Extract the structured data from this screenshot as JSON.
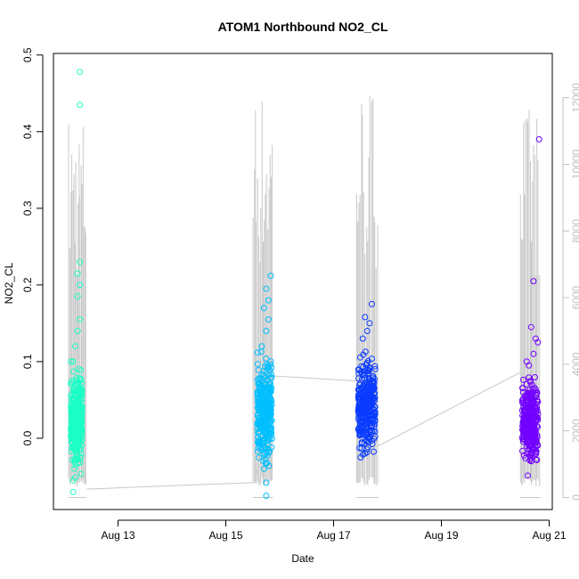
{
  "chart_data": {
    "type": "scatter",
    "title": "ATOM1 Northbound NO2_CL",
    "xlabel": "Date",
    "ylabel": "NO2_CL",
    "x_ticks": [
      "Aug 13",
      "Aug 15",
      "Aug 17",
      "Aug 19",
      "Aug 21"
    ],
    "xlim": [
      "2023-08-12T00:00",
      "2023-08-21T00:00"
    ],
    "ylim": [
      -0.07,
      0.5
    ],
    "y_ticks": [
      0.0,
      0.1,
      0.2,
      0.3,
      0.4,
      0.5
    ],
    "y_tick_labels": [
      "0.0",
      "0.1",
      "0.2",
      "0.3",
      "0.4",
      "0.5"
    ],
    "y2_ticks": [
      0,
      2000,
      4000,
      6000,
      8000,
      10000,
      12000
    ],
    "y2_tick_labels": [
      "0",
      "2000",
      "4000",
      "6000",
      "8000",
      "10000",
      "12000"
    ],
    "y2lim": [
      0,
      12700
    ],
    "grid": false,
    "legend": "none",
    "series": [
      {
        "color": "#1affc6",
        "x_range": [
          "2023-08-12T03:00",
          "2023-08-12T08:00"
        ],
        "y_core": [
          -0.03,
          0.075
        ],
        "outliers": [
          {
            "x": "2023-08-12T07:00",
            "y": 0.478
          },
          {
            "x": "2023-08-12T07:00",
            "y": 0.435
          },
          {
            "x": "2023-08-12T07:00",
            "y": 0.23
          },
          {
            "x": "2023-08-12T06:00",
            "y": 0.215
          },
          {
            "x": "2023-08-12T07:00",
            "y": 0.2
          },
          {
            "x": "2023-08-12T06:00",
            "y": 0.185
          },
          {
            "x": "2023-08-12T07:00",
            "y": 0.155
          },
          {
            "x": "2023-08-12T06:00",
            "y": 0.14
          },
          {
            "x": "2023-08-12T05:00",
            "y": 0.12
          },
          {
            "x": "2023-08-12T04:00",
            "y": 0.1
          },
          {
            "x": "2023-08-12T03:00",
            "y": 0.1
          },
          {
            "x": "2023-08-12T04:00",
            "y": -0.07
          },
          {
            "x": "2023-08-12T04:00",
            "y": -0.055
          }
        ]
      },
      {
        "color": "#00bfff",
        "x_range": [
          "2023-08-15T14:00",
          "2023-08-15T20:30"
        ],
        "y_core": [
          -0.025,
          0.1
        ],
        "outliers": [
          {
            "x": "2023-08-15T20:00",
            "y": 0.212
          },
          {
            "x": "2023-08-15T18:00",
            "y": 0.195
          },
          {
            "x": "2023-08-15T19:00",
            "y": 0.18
          },
          {
            "x": "2023-08-15T17:00",
            "y": 0.17
          },
          {
            "x": "2023-08-15T19:00",
            "y": 0.155
          },
          {
            "x": "2023-08-15T18:00",
            "y": 0.14
          },
          {
            "x": "2023-08-15T16:00",
            "y": 0.12
          },
          {
            "x": "2023-08-15T18:00",
            "y": -0.075
          },
          {
            "x": "2023-08-15T18:00",
            "y": -0.058
          },
          {
            "x": "2023-08-15T17:00",
            "y": -0.04
          }
        ]
      },
      {
        "color": "#0a3bff",
        "x_range": [
          "2023-08-17T11:00",
          "2023-08-17T18:30"
        ],
        "y_core": [
          -0.02,
          0.1
        ],
        "outliers": [
          {
            "x": "2023-08-17T17:00",
            "y": 0.175
          },
          {
            "x": "2023-08-17T14:00",
            "y": 0.158
          },
          {
            "x": "2023-08-17T16:00",
            "y": 0.15
          },
          {
            "x": "2023-08-17T15:00",
            "y": 0.14
          },
          {
            "x": "2023-08-17T13:00",
            "y": 0.13
          },
          {
            "x": "2023-08-17T12:00",
            "y": -0.025
          },
          {
            "x": "2023-08-17T14:00",
            "y": -0.02
          }
        ]
      },
      {
        "color": "#7200ff",
        "x_range": [
          "2023-08-20T12:00",
          "2023-08-20T19:00"
        ],
        "y_core": [
          -0.03,
          0.075
        ],
        "outliers": [
          {
            "x": "2023-08-20T19:30",
            "y": 0.39
          },
          {
            "x": "2023-08-20T17:00",
            "y": 0.205
          },
          {
            "x": "2023-08-20T16:00",
            "y": 0.145
          },
          {
            "x": "2023-08-20T18:00",
            "y": 0.13
          },
          {
            "x": "2023-08-20T19:00",
            "y": 0.125
          },
          {
            "x": "2023-08-20T17:00",
            "y": 0.11
          },
          {
            "x": "2023-08-20T14:00",
            "y": 0.1
          },
          {
            "x": "2023-08-20T15:00",
            "y": 0.095
          },
          {
            "x": "2023-08-20T16:00",
            "y": -0.03
          }
        ]
      }
    ],
    "grey_series": {
      "color": "#c8c8c8",
      "axis": "right",
      "clusters": [
        {
          "x_range": [
            "2023-08-12T02:00",
            "2023-08-12T10:00"
          ],
          "max": 11600
        },
        {
          "x_range": [
            "2023-08-15T12:00",
            "2023-08-15T21:00"
          ],
          "max": 12300
        },
        {
          "x_range": [
            "2023-08-17T10:00",
            "2023-08-17T20:00"
          ],
          "max": 12500
        },
        {
          "x_range": [
            "2023-08-20T11:00",
            "2023-08-20T20:00"
          ],
          "max": 11800
        }
      ],
      "connectors": [
        {
          "x": "2023-08-12T10:00",
          "y": 250
        },
        {
          "x": "2023-08-15T13:00",
          "y": 450
        },
        {
          "x": "2023-08-15T21:00",
          "y": 3650
        },
        {
          "x": "2023-08-17T10:00",
          "y": 3500
        },
        {
          "x": "2023-08-17T20:00",
          "y": 1550
        },
        {
          "x": "2023-08-20T11:00",
          "y": 3750
        }
      ]
    }
  }
}
